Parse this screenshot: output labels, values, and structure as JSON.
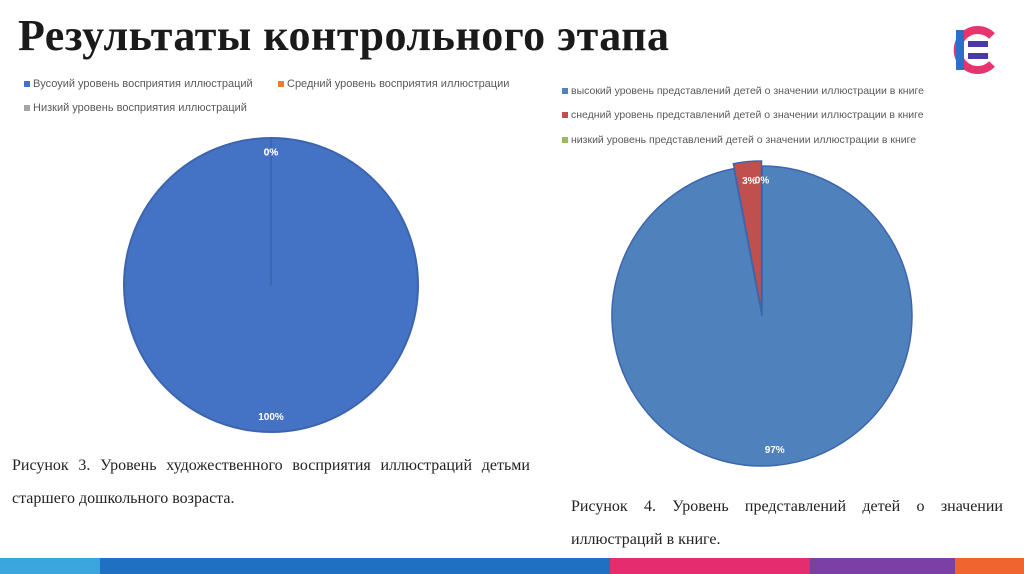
{
  "title": "Результаты контрольного этапа",
  "chart_data": [
    {
      "type": "pie",
      "categories": [
        "Вусоуий уровень восприятия иллюстраций",
        "Средний уровень восприятия иллюстрации",
        "Низкий уровень восприятия иллюстраций"
      ],
      "values": [
        100,
        0,
        0
      ],
      "value_labels": [
        "100%",
        "0%",
        "0%"
      ],
      "colors": [
        "#4472c4",
        "#ed7d31",
        "#a5a5a5"
      ],
      "caption": "Рисунок 3. Уровень художественного восприятия иллюстраций детьми старшего дошкольного возраста."
    },
    {
      "type": "pie",
      "categories": [
        "высокий уровень представлений детей о значении иллюстрации в книге",
        "снедний уровень представлений детей о значении иллюстрации в книге",
        "низкий уровень представлений детей о значении иллюстрации в книге"
      ],
      "values": [
        97,
        3,
        0
      ],
      "value_labels": [
        "97%",
        "3%",
        "0%"
      ],
      "colors": [
        "#4f81bd",
        "#c0504d",
        "#9bbb59"
      ],
      "caption": "Рисунок 4. Уровень представлений детей о значении иллюстраций в книге."
    }
  ]
}
